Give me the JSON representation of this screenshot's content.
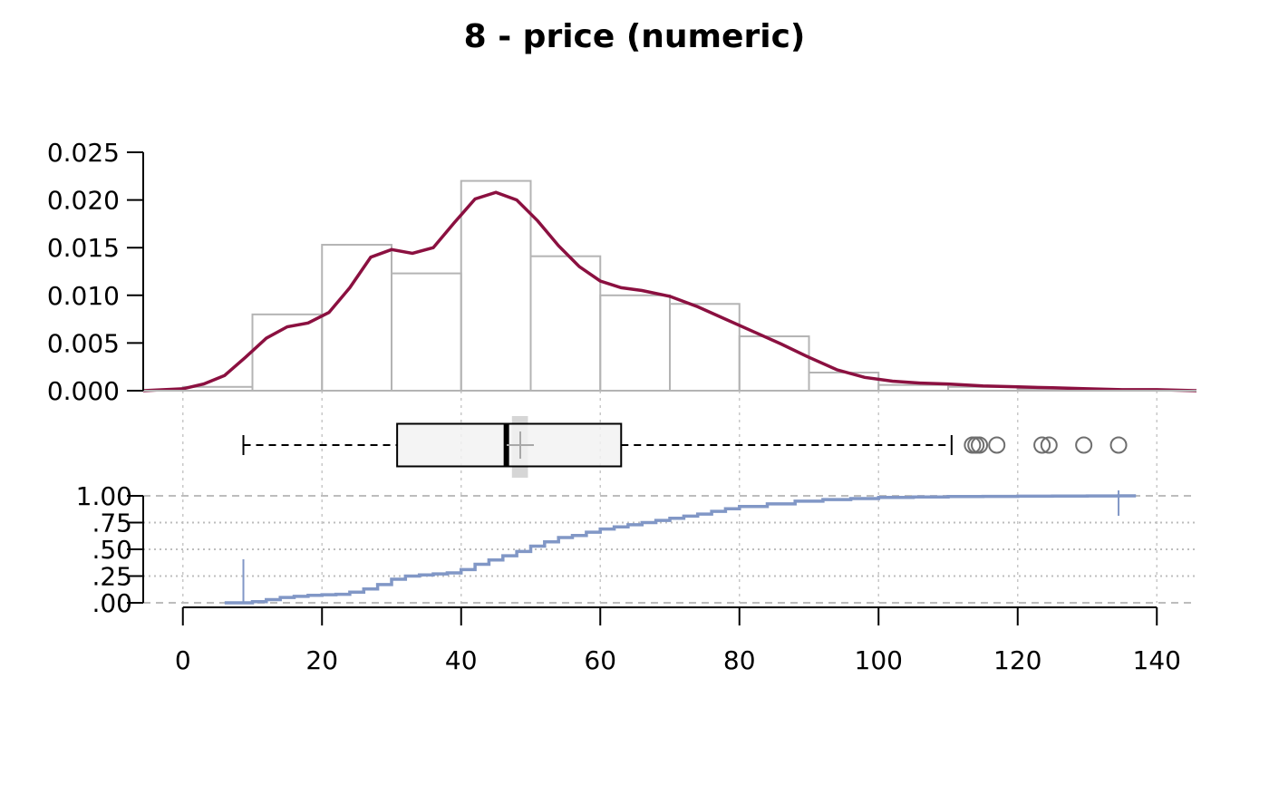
{
  "chart_data": {
    "title": "8 - price (numeric)",
    "type": "histogram-density-boxplot-ecdf",
    "colors": {
      "density": "#8b1040",
      "ecdf": "#8197c6",
      "histogram": "#b4b4b4",
      "box_fill": "#f2f2f2",
      "outlier": "#6e6e6e",
      "ci": "#d6d6d6"
    },
    "x_axis": {
      "ticks": [
        0,
        20,
        40,
        60,
        80,
        100,
        120,
        140
      ],
      "tick_labels": [
        "0",
        "20",
        "40",
        "60",
        "80",
        "100",
        "120",
        "140"
      ],
      "range": [
        -5.7,
        145.7
      ]
    },
    "histogram": {
      "ylim": [
        0,
        0.025
      ],
      "ticks": [
        0,
        0.005,
        0.01,
        0.015,
        0.02,
        0.025
      ],
      "tick_labels": [
        "0.000",
        "0.005",
        "0.010",
        "0.015",
        "0.020",
        "0.025"
      ],
      "bins": [
        {
          "x0": 0,
          "x1": 10,
          "density": 0.0004
        },
        {
          "x0": 10,
          "x1": 20,
          "density": 0.008
        },
        {
          "x0": 20,
          "x1": 30,
          "density": 0.0153
        },
        {
          "x0": 30,
          "x1": 40,
          "density": 0.0123
        },
        {
          "x0": 40,
          "x1": 50,
          "density": 0.022
        },
        {
          "x0": 50,
          "x1": 60,
          "density": 0.0141
        },
        {
          "x0": 60,
          "x1": 70,
          "density": 0.01
        },
        {
          "x0": 70,
          "x1": 80,
          "density": 0.0091
        },
        {
          "x0": 80,
          "x1": 90,
          "density": 0.0057
        },
        {
          "x0": 90,
          "x1": 100,
          "density": 0.0019
        },
        {
          "x0": 100,
          "x1": 110,
          "density": 0.0006
        },
        {
          "x0": 110,
          "x1": 120,
          "density": 0.0004
        },
        {
          "x0": 120,
          "x1": 130,
          "density": 0.0002
        },
        {
          "x0": 130,
          "x1": 140,
          "density": 0.0001
        }
      ]
    },
    "density": {
      "x": [
        -5.7,
        0,
        3,
        6,
        9,
        12,
        15,
        18,
        21,
        24,
        27,
        30,
        33,
        36,
        39,
        42,
        45,
        48,
        51,
        54,
        57,
        60,
        63,
        66,
        70,
        74,
        78,
        82,
        86,
        90,
        94,
        98,
        102,
        106,
        110,
        115,
        120,
        125,
        130,
        135,
        140,
        145.7
      ],
      "y": [
        0.0,
        0.0002,
        0.0007,
        0.0016,
        0.0035,
        0.0055,
        0.0067,
        0.0071,
        0.0082,
        0.0108,
        0.014,
        0.0148,
        0.0144,
        0.015,
        0.0176,
        0.0201,
        0.0208,
        0.02,
        0.0178,
        0.0152,
        0.013,
        0.0115,
        0.0108,
        0.0105,
        0.0099,
        0.0088,
        0.0075,
        0.0062,
        0.0049,
        0.0035,
        0.0022,
        0.0014,
        0.001,
        0.0008,
        0.0007,
        0.0005,
        0.0004,
        0.0003,
        0.0002,
        0.0001,
        0.0001,
        0.0
      ]
    },
    "boxplot": {
      "whisker_low": 8.7,
      "q1": 30.8,
      "median": 46.5,
      "q3": 63.0,
      "whisker_high": 110.5,
      "mean": 48.5,
      "ci_low": 47.3,
      "ci_high": 49.6,
      "outliers": [
        113.5,
        114.0,
        114.5,
        117.0,
        123.5,
        124.5,
        129.5,
        134.5
      ]
    },
    "ecdf": {
      "ylim": [
        0,
        1
      ],
      "ticks": [
        0,
        0.25,
        0.5,
        0.75,
        1
      ],
      "tick_labels": [
        ".00",
        ".25",
        ".50",
        ".75",
        "1.00"
      ],
      "x": [
        6,
        8.7,
        10,
        12,
        14,
        16,
        18,
        20,
        22,
        24,
        26,
        28,
        30,
        32,
        34,
        36,
        38,
        40,
        42,
        44,
        46,
        48,
        50,
        52,
        54,
        56,
        58,
        60,
        62,
        64,
        66,
        68,
        70,
        72,
        74,
        76,
        78,
        80,
        84,
        88,
        92,
        96,
        100,
        105,
        110,
        115,
        120,
        125,
        130,
        134.5,
        137
      ],
      "y": [
        0.0,
        0.0,
        0.01,
        0.03,
        0.05,
        0.06,
        0.07,
        0.075,
        0.08,
        0.1,
        0.13,
        0.17,
        0.22,
        0.25,
        0.26,
        0.27,
        0.28,
        0.31,
        0.36,
        0.4,
        0.44,
        0.48,
        0.53,
        0.57,
        0.61,
        0.63,
        0.66,
        0.69,
        0.71,
        0.73,
        0.75,
        0.77,
        0.79,
        0.81,
        0.83,
        0.855,
        0.88,
        0.9,
        0.925,
        0.95,
        0.965,
        0.975,
        0.985,
        0.99,
        0.993,
        0.995,
        0.997,
        0.998,
        0.999,
        1.0,
        1.0
      ],
      "min_marker": 8.7,
      "max_marker": 134.5
    }
  }
}
